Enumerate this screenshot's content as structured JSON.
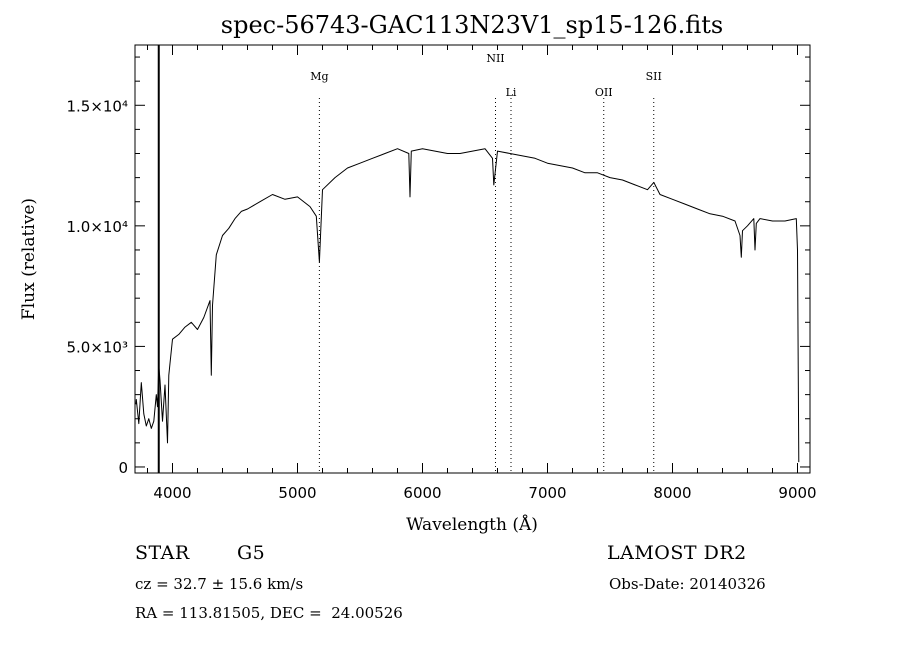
{
  "chart_data": {
    "type": "line",
    "title": "spec-56743-GAC113N23V1_sp15-126.fits",
    "xlabel": "Wavelength (Å)",
    "ylabel": "Flux (relative)",
    "xlim": [
      3700,
      9100
    ],
    "ylim": [
      -250,
      17500
    ],
    "x_ticks": [
      4000,
      5000,
      6000,
      7000,
      8000,
      9000
    ],
    "x_tick_labels": [
      "4000",
      "5000",
      "6000",
      "7000",
      "8000",
      "9000"
    ],
    "y_ticks": [
      0,
      5000,
      10000,
      15000
    ],
    "y_tick_labels": [
      "0",
      "5.0×10³",
      "1.0×10⁴",
      "1.5×10⁴"
    ],
    "grid": false,
    "lines": [
      {
        "label": "Mg",
        "x": 5175
      },
      {
        "label": "NII",
        "x": 6584
      },
      {
        "label": "Li",
        "x": 6708
      },
      {
        "label": "OII",
        "x": 7450
      },
      {
        "label": "SII",
        "x": 7850
      }
    ],
    "series": [
      {
        "x": [
          3700,
          3710,
          3730,
          3750,
          3770,
          3790,
          3810,
          3830,
          3850,
          3870,
          3880,
          3890,
          3900,
          3920,
          3940,
          3960,
          3970,
          3980,
          4000,
          4050,
          4100,
          4150,
          4200,
          4250,
          4300,
          4310,
          4320,
          4350,
          4400,
          4450,
          4500,
          4550,
          4600,
          4700,
          4800,
          4900,
          5000,
          5100,
          5150,
          5175,
          5200,
          5300,
          5400,
          5500,
          5600,
          5700,
          5800,
          5890,
          5900,
          5910,
          6000,
          6100,
          6200,
          6300,
          6400,
          6500,
          6560,
          6570,
          6600,
          6700,
          6800,
          6900,
          7000,
          7100,
          7200,
          7300,
          7400,
          7500,
          7600,
          7700,
          7800,
          7850,
          7900,
          8000,
          8100,
          8200,
          8300,
          8400,
          8500,
          8540,
          8550,
          8560,
          8600,
          8650,
          8660,
          8670,
          8700,
          8800,
          8900,
          8990,
          9000,
          9010
        ],
        "y": [
          2600,
          2800,
          1800,
          3500,
          2200,
          1700,
          2000,
          1600,
          1900,
          3000,
          2500,
          4200,
          3600,
          1900,
          3400,
          1000,
          3800,
          4300,
          5300,
          5500,
          5800,
          6000,
          5700,
          6200,
          6900,
          3800,
          6700,
          8800,
          9600,
          9900,
          10300,
          10600,
          10700,
          11000,
          11300,
          11100,
          11200,
          10800,
          10400,
          8500,
          11500,
          12000,
          12400,
          12600,
          12800,
          13000,
          13200,
          13000,
          11200,
          13100,
          13200,
          13100,
          13000,
          13000,
          13100,
          13200,
          12800,
          11700,
          13100,
          13000,
          12900,
          12800,
          12600,
          12500,
          12400,
          12200,
          12200,
          12000,
          11900,
          11700,
          11500,
          11800,
          11300,
          11100,
          10900,
          10700,
          10500,
          10400,
          10200,
          9600,
          8700,
          9800,
          10000,
          10300,
          9000,
          10100,
          10300,
          10200,
          10200,
          10300,
          9000,
          200
        ]
      }
    ]
  },
  "info": {
    "object_class": "STAR",
    "subclass": "G5",
    "survey": "LAMOST DR2",
    "redshift": "cz = 32.7 ± 15.6 km/s",
    "obs_date": "Obs-Date: 20140326",
    "coords": "RA = 113.81505, DEC =  24.00526"
  }
}
